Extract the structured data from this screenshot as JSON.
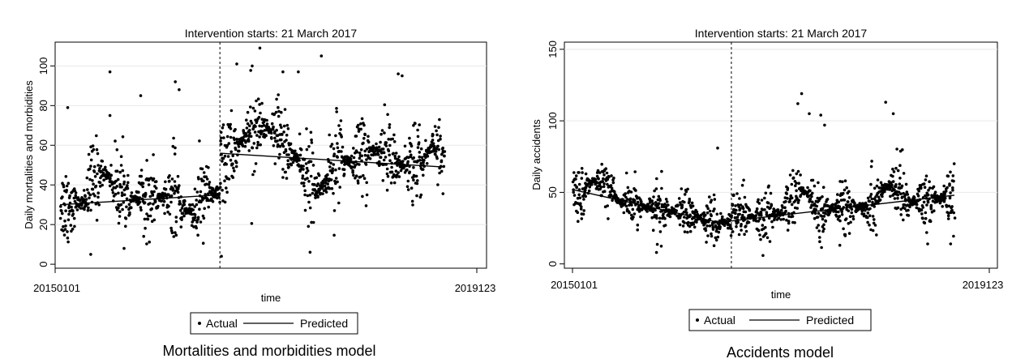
{
  "chart_data": [
    {
      "type": "scatter",
      "title": "Intervention starts: 21 March 2017",
      "caption": "Mortalities and morbidities model",
      "xlabel": "time",
      "ylabel": "Daily mortalities and morbidities",
      "x_tick_labels": [
        "20150101",
        "2019123"
      ],
      "y_ticks": [
        0,
        20,
        40,
        60,
        80,
        100
      ],
      "ylim": [
        -2,
        112
      ],
      "intervention_fraction": 0.416,
      "legend": {
        "position": "bottom",
        "actual": "Actual",
        "predicted": "Predicted"
      },
      "series": [
        {
          "name": "Actual",
          "kind": "points",
          "segments": [
            {
              "from": 0.0,
              "to": 0.416,
              "mean_start": 30,
              "mean_end": 36,
              "spread": 11,
              "clusters": [
                [
                  0.06,
                  0.14,
                  12
                ],
                [
                  0.3,
                  0.38,
                  -8
                ],
                [
                  0.1,
                  0.18,
                  8
                ]
              ]
            },
            {
              "from": 0.416,
              "to": 1.0,
              "mean_start": 57,
              "mean_end": 49,
              "spread": 13,
              "clusters": [
                [
                  0.45,
                  0.6,
                  14
                ],
                [
                  0.62,
                  0.72,
                  -14
                ],
                [
                  0.78,
                  0.88,
                  6
                ],
                [
                  0.94,
                  1.0,
                  10
                ]
              ]
            }
          ],
          "count": 1400,
          "outliers": [
            [
              0.13,
              97
            ],
            [
              0.13,
              75
            ],
            [
              0.21,
              85
            ],
            [
              0.3,
              92
            ],
            [
              0.31,
              88
            ],
            [
              0.46,
              101
            ],
            [
              0.52,
              109
            ],
            [
              0.5,
              100
            ],
            [
              0.58,
              97
            ],
            [
              0.62,
              97
            ],
            [
              0.68,
              105
            ],
            [
              0.88,
              96
            ],
            [
              0.89,
              95
            ],
            [
              0.42,
              4
            ],
            [
              0.08,
              5
            ],
            [
              0.02,
              79
            ]
          ]
        },
        {
          "name": "Predicted",
          "kind": "line",
          "segments": [
            {
              "x": [
                0.0,
                0.416
              ],
              "y": [
                30,
                35
              ]
            },
            {
              "x": [
                0.416,
                1.0
              ],
              "y": [
                56,
                49
              ]
            }
          ]
        }
      ]
    },
    {
      "type": "scatter",
      "title": "Intervention starts: 21 March 2017",
      "caption": "Accidents model",
      "xlabel": "time",
      "ylabel": "Daily accidents",
      "x_tick_labels": [
        "20150101",
        "2019123"
      ],
      "y_ticks": [
        0,
        50,
        100,
        150
      ],
      "ylim": [
        -3,
        155
      ],
      "intervention_fraction": 0.416,
      "legend": {
        "position": "bottom",
        "actual": "Actual",
        "predicted": "Predicted"
      },
      "series": [
        {
          "name": "Actual",
          "kind": "points",
          "segments": [
            {
              "from": 0.0,
              "to": 0.416,
              "mean_start": 50,
              "mean_end": 28,
              "spread": 10,
              "clusters": [
                [
                  0.02,
                  0.12,
                  12
                ]
              ]
            },
            {
              "from": 0.416,
              "to": 1.0,
              "mean_start": 32,
              "mean_end": 46,
              "spread": 12,
              "clusters": [
                [
                  0.55,
                  0.65,
                  14
                ],
                [
                  0.78,
                  0.88,
                  12
                ]
              ]
            }
          ],
          "count": 1400,
          "outliers": [
            [
              0.38,
              81
            ],
            [
              0.59,
              112
            ],
            [
              0.62,
              105
            ],
            [
              0.65,
              104
            ],
            [
              0.66,
              97
            ],
            [
              0.82,
              113
            ],
            [
              0.84,
              105
            ],
            [
              0.6,
              119
            ],
            [
              0.22,
              8
            ],
            [
              0.7,
              13
            ],
            [
              0.93,
              14
            ],
            [
              0.99,
              14
            ]
          ]
        },
        {
          "name": "Predicted",
          "kind": "line",
          "segments": [
            {
              "x": [
                0.0,
                0.416
              ],
              "y": [
                52,
                27
              ]
            },
            {
              "x": [
                0.416,
                1.0
              ],
              "y": [
                30,
                48
              ]
            }
          ]
        }
      ]
    }
  ]
}
